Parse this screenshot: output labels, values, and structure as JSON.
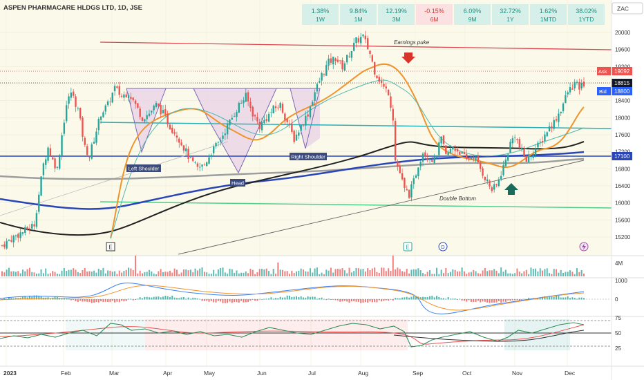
{
  "header": {
    "title": "ASPEN PHARMACARE HLDGS LTD, 1D, JSE",
    "currency": "ZAC"
  },
  "performance": [
    {
      "value": "1.38%",
      "period": "1W",
      "positive": true
    },
    {
      "value": "9.84%",
      "period": "1M",
      "positive": true
    },
    {
      "value": "12.19%",
      "period": "3M",
      "positive": true
    },
    {
      "value": "-0.15%",
      "period": "6M",
      "positive": false
    },
    {
      "value": "6.09%",
      "period": "9M",
      "positive": true
    },
    {
      "value": "32.72%",
      "period": "1Y",
      "positive": true
    },
    {
      "value": "1.62%",
      "period": "1MTD",
      "positive": true
    },
    {
      "value": "38.02%",
      "period": "1YTD",
      "positive": true
    }
  ],
  "quotes": {
    "ask_label": "Ask",
    "ask_value": "19092",
    "last_value": "18815",
    "bid_label": "Bid",
    "bid_value": "18800",
    "hline_value": "17100"
  },
  "annotations": {
    "earnings": "Earnings puke",
    "left_shoulder": "Left Shoulder",
    "head": "Head",
    "right_shoulder": "Right Shoulder",
    "double_bottom": "Double Bottom"
  },
  "markers": {
    "e1": "E",
    "e2": "E",
    "d": "D"
  },
  "colors": {
    "up": "#26a69a",
    "down": "#ef5350",
    "ema_fast": "#f0932b",
    "ema_slow": "#222222",
    "sma_blue": "#2945b8",
    "sma_gray": "#9e9e9e",
    "cyan_line": "#26b0b8",
    "green_line": "#4fd08a",
    "red_line": "#e0434f"
  },
  "chart_data": {
    "type": "candlestick",
    "x_ticks": [
      "2023",
      "Feb",
      "Mar",
      "Apr",
      "May",
      "Jun",
      "Jul",
      "Aug",
      "Sep",
      "Oct",
      "Nov",
      "Dec"
    ],
    "price_ticks": [
      20000,
      19600,
      19200,
      18800,
      18400,
      18000,
      17600,
      17200,
      16800,
      16400,
      16000,
      15600,
      15200
    ],
    "ylim": [
      14800,
      20400
    ],
    "volume_label": "4M",
    "macd_ticks": [
      "1000",
      "0"
    ],
    "rsi_ticks": [
      "75",
      "50",
      "25"
    ],
    "price_path": [
      [
        0,
        15000
      ],
      [
        5,
        15200
      ],
      [
        10,
        15350
      ],
      [
        14,
        15500
      ],
      [
        16,
        16200
      ],
      [
        18,
        16900
      ],
      [
        20,
        17300
      ],
      [
        22,
        17000
      ],
      [
        24,
        16800
      ],
      [
        26,
        17600
      ],
      [
        28,
        18300
      ],
      [
        30,
        18600
      ],
      [
        33,
        18200
      ],
      [
        36,
        17300
      ],
      [
        38,
        17100
      ],
      [
        40,
        17500
      ],
      [
        43,
        18100
      ],
      [
        46,
        18300
      ],
      [
        49,
        18700
      ],
      [
        52,
        18500
      ],
      [
        55,
        18600
      ],
      [
        58,
        18300
      ],
      [
        61,
        18000
      ],
      [
        64,
        18100
      ],
      [
        67,
        18300
      ],
      [
        70,
        18100
      ],
      [
        73,
        17800
      ],
      [
        76,
        17600
      ],
      [
        79,
        17300
      ],
      [
        82,
        17000
      ],
      [
        85,
        16800
      ],
      [
        88,
        16900
      ],
      [
        91,
        17200
      ],
      [
        94,
        17400
      ],
      [
        97,
        17700
      ],
      [
        100,
        18000
      ],
      [
        103,
        18300
      ],
      [
        106,
        18500
      ],
      [
        109,
        18100
      ],
      [
        112,
        17800
      ],
      [
        115,
        18000
      ],
      [
        118,
        18200
      ],
      [
        121,
        18300
      ],
      [
        124,
        17900
      ],
      [
        127,
        17500
      ],
      [
        130,
        17800
      ],
      [
        133,
        18100
      ],
      [
        136,
        18600
      ],
      [
        139,
        19000
      ],
      [
        142,
        19300
      ],
      [
        145,
        19400
      ],
      [
        148,
        19200
      ],
      [
        151,
        19500
      ],
      [
        154,
        19800
      ],
      [
        157,
        19900
      ],
      [
        160,
        19500
      ],
      [
        162,
        19100
      ],
      [
        164,
        18900
      ],
      [
        166,
        18700
      ],
      [
        168,
        18600
      ],
      [
        170,
        18000
      ],
      [
        171,
        17000
      ],
      [
        173,
        16700
      ],
      [
        175,
        16300
      ],
      [
        177,
        16200
      ],
      [
        179,
        16500
      ],
      [
        181,
        16900
      ],
      [
        183,
        17200
      ],
      [
        185,
        17100
      ],
      [
        188,
        17000
      ],
      [
        191,
        17500
      ],
      [
        193,
        17100
      ],
      [
        196,
        17300
      ],
      [
        199,
        17200
      ],
      [
        202,
        17000
      ],
      [
        205,
        17100
      ],
      [
        208,
        16800
      ],
      [
        211,
        16500
      ],
      [
        213,
        16300
      ],
      [
        215,
        16400
      ],
      [
        217,
        16700
      ],
      [
        219,
        17000
      ],
      [
        221,
        17400
      ],
      [
        223,
        17600
      ],
      [
        225,
        17300
      ],
      [
        228,
        17000
      ],
      [
        231,
        17200
      ],
      [
        234,
        17400
      ],
      [
        237,
        17700
      ],
      [
        240,
        17900
      ],
      [
        243,
        18200
      ],
      [
        246,
        18600
      ],
      [
        249,
        18800
      ],
      [
        251,
        18700
      ],
      [
        253,
        18800
      ]
    ]
  }
}
